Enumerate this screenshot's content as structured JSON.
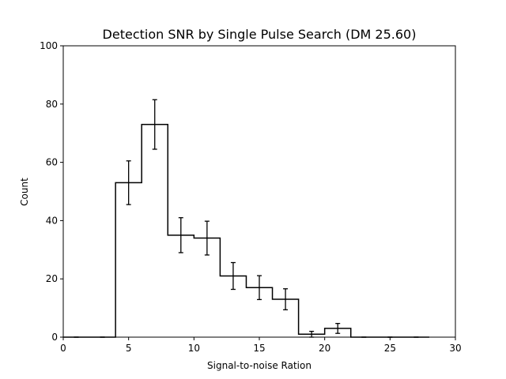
{
  "chart_data": {
    "type": "bar",
    "style": "step-histogram-with-error-bars",
    "title": "Detection SNR by Single Pulse Search (DM 25.60)",
    "xlabel": "Signal-to-noise Ration",
    "ylabel": "Count",
    "xlim": [
      0,
      30
    ],
    "ylim": [
      0,
      100
    ],
    "xticks": [
      0,
      5,
      10,
      15,
      20,
      25,
      30
    ],
    "yticks": [
      0,
      20,
      40,
      60,
      80,
      100
    ],
    "grid": false,
    "bin_edges": [
      0,
      2,
      4,
      6,
      8,
      10,
      12,
      14,
      16,
      18,
      20,
      22,
      24,
      26,
      28
    ],
    "values": [
      0,
      0,
      53,
      73,
      35,
      34,
      21,
      17,
      13,
      1,
      3,
      0,
      0,
      0
    ],
    "bin_centers": [
      1,
      3,
      5,
      7,
      9,
      11,
      13,
      15,
      17,
      19,
      21,
      23,
      25,
      27
    ],
    "error_low": [
      0,
      0,
      7.5,
      8.5,
      6,
      5.8,
      4.6,
      4.1,
      3.6,
      1,
      1.7,
      0,
      0,
      0
    ],
    "error_high": [
      0,
      0,
      7.5,
      8.5,
      6,
      5.8,
      4.6,
      4.1,
      3.6,
      1,
      1.7,
      0,
      0,
      0
    ],
    "line_color": "#000000"
  }
}
